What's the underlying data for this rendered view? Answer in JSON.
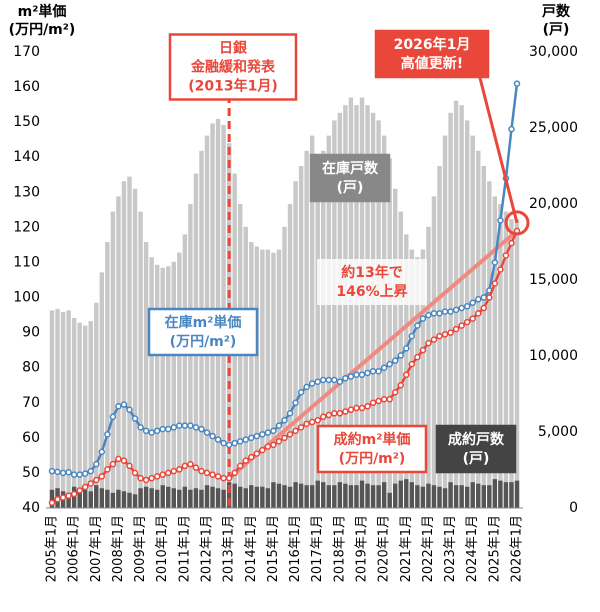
{
  "chart_data": {
    "type": "combo",
    "left_axis_title": [
      "m²単価",
      "(万円/m²)"
    ],
    "right_axis_title": [
      "戸数",
      "(戸)"
    ],
    "categories": [
      "2005年1月",
      null,
      null,
      null,
      "2006年1月",
      null,
      null,
      null,
      "2007年1月",
      null,
      null,
      null,
      "2008年1月",
      null,
      null,
      null,
      "2009年1月",
      null,
      null,
      null,
      "2010年1月",
      null,
      null,
      null,
      "2011年1月",
      null,
      null,
      null,
      "2012年1月",
      null,
      null,
      null,
      "2013年1月",
      null,
      null,
      null,
      "2014年1月",
      null,
      null,
      null,
      "2015年1月",
      null,
      null,
      null,
      "2016年1月",
      null,
      null,
      null,
      "2017年1月",
      null,
      null,
      null,
      "2018年1月",
      null,
      null,
      null,
      "2019年1月",
      null,
      null,
      null,
      "2020年1月",
      null,
      null,
      null,
      "2021年1月",
      null,
      null,
      null,
      "2022年1月",
      null,
      null,
      null,
      "2023年1月",
      null,
      null,
      null,
      "2024年1月",
      null,
      null,
      null,
      "2025年1月",
      null,
      null,
      null,
      "2026年1月"
    ],
    "ylim": [
      40,
      170
    ],
    "yticks": [
      40,
      50,
      60,
      70,
      80,
      90,
      100,
      110,
      120,
      130,
      140,
      150,
      160,
      170
    ],
    "y2lim": [
      0,
      30000
    ],
    "y2ticks": [
      0,
      {
        "value": 5000,
        "label": "5,000"
      },
      {
        "value": 10000,
        "label": "10,000"
      },
      {
        "value": 15000,
        "label": "15,000"
      },
      {
        "value": 20000,
        "label": "20,000"
      },
      {
        "value": 25000,
        "label": "25,000"
      },
      {
        "value": 30000,
        "label": "30,000"
      }
    ],
    "series": [
      {
        "name": "在庫戸数",
        "unit": "(戸)",
        "kind": "bar",
        "axis": "y2",
        "color": "#c8c8c8",
        "values": [
          13000,
          13100,
          12900,
          13000,
          12500,
          12200,
          12000,
          12300,
          13500,
          15500,
          17500,
          19500,
          20500,
          21500,
          21800,
          21000,
          19500,
          17500,
          16500,
          16000,
          15800,
          15900,
          16200,
          16800,
          18000,
          20000,
          22000,
          23500,
          24500,
          25300,
          25600,
          25200,
          24000,
          22000,
          20000,
          18500,
          17500,
          17200,
          17000,
          17000,
          16800,
          17000,
          18500,
          20000,
          21500,
          22500,
          23500,
          24500,
          23000,
          23500,
          24500,
          25500,
          26000,
          26500,
          27000,
          26500,
          27000,
          26500,
          26000,
          25500,
          24500,
          23000,
          21000,
          19500,
          18000,
          17000,
          16500,
          17000,
          18500,
          20500,
          22500,
          24500,
          26000,
          26800,
          26500,
          25500,
          24500,
          23500,
          22500,
          21500,
          20500,
          20000,
          19500,
          19000,
          19000
        ]
      },
      {
        "name": "成約戸数",
        "unit": "(戸)",
        "kind": "bar",
        "axis": "y2",
        "color": "#555555",
        "values": [
          1200,
          1300,
          1100,
          1000,
          1400,
          1300,
          1200,
          1100,
          1500,
          1300,
          1200,
          1000,
          1200,
          1100,
          1000,
          900,
          1300,
          1400,
          1300,
          1200,
          1500,
          1400,
          1300,
          1200,
          1400,
          1200,
          1300,
          1200,
          1500,
          1400,
          1300,
          1200,
          1700,
          1600,
          1400,
          1300,
          1500,
          1400,
          1400,
          1300,
          1700,
          1600,
          1500,
          1400,
          1700,
          1600,
          1500,
          1500,
          1800,
          1700,
          1500,
          1500,
          1700,
          1600,
          1500,
          1500,
          1800,
          1600,
          1500,
          1500,
          1700,
          1000,
          1600,
          1800,
          1900,
          1700,
          1500,
          1400,
          1600,
          1500,
          1400,
          1300,
          1700,
          1500,
          1500,
          1400,
          1700,
          1600,
          1500,
          1500,
          1900,
          1800,
          1700,
          1700,
          1800
        ]
      },
      {
        "name": "在庫m²単価",
        "unit": "(万円/m²)",
        "kind": "line",
        "color": "#4a86c0",
        "values": [
          50.5,
          50.3,
          50.0,
          50.2,
          49.5,
          49.5,
          49.8,
          50.5,
          52.5,
          56,
          61,
          66,
          69,
          69.5,
          68,
          65.5,
          63,
          62,
          61.5,
          62,
          62.5,
          62.5,
          63,
          63.5,
          63.5,
          63.5,
          63,
          62.5,
          61.5,
          60.5,
          59.5,
          58.5,
          58,
          58.5,
          59,
          59.5,
          60,
          60.5,
          61,
          61.5,
          62,
          63.5,
          65,
          67,
          70,
          73,
          74.5,
          75.5,
          76,
          76.5,
          76.5,
          76.5,
          76,
          77,
          77.5,
          78,
          78,
          78.5,
          79,
          79,
          80,
          81,
          82,
          83.5,
          85.5,
          89,
          92,
          94,
          95,
          95.5,
          95.5,
          96,
          96,
          96.5,
          97,
          97.5,
          98.5,
          99.5,
          100,
          102,
          110,
          122,
          134,
          148,
          161
        ]
      },
      {
        "name": "成約m²単価",
        "unit": "(万円/m²)",
        "kind": "line",
        "color": "#e8473a",
        "values": [
          41.5,
          42.5,
          43,
          43.5,
          44,
          45,
          46,
          47,
          48,
          49,
          51,
          52.5,
          54,
          53.5,
          52,
          50,
          48.5,
          48,
          48.5,
          49,
          49.5,
          50,
          50.5,
          51,
          52,
          52.5,
          51.5,
          50.5,
          50,
          49.5,
          49,
          48.5,
          48.5,
          50,
          52,
          53.5,
          54.5,
          55.5,
          56.5,
          57.5,
          58,
          59,
          60,
          61,
          62,
          63,
          64,
          64.5,
          65,
          66,
          66.5,
          67,
          67,
          67.5,
          68,
          68.5,
          68.5,
          69,
          70,
          70.5,
          71,
          71,
          73,
          75,
          78,
          81,
          83,
          85,
          87,
          88,
          89,
          89.5,
          90,
          91,
          92,
          93,
          94,
          95.5,
          97,
          100,
          104,
          108,
          112,
          115.5,
          119
        ]
      }
    ],
    "event_note": {
      "x": "2013年1月",
      "lines": [
        "日銀",
        "金融緩和発表",
        "(2013年1月)"
      ]
    },
    "high_note": {
      "x": "2026年1月",
      "lines": [
        "2026年1月",
        "高値更新!"
      ]
    },
    "trend_note": [
      "約13年で",
      "146%上昇"
    ]
  }
}
